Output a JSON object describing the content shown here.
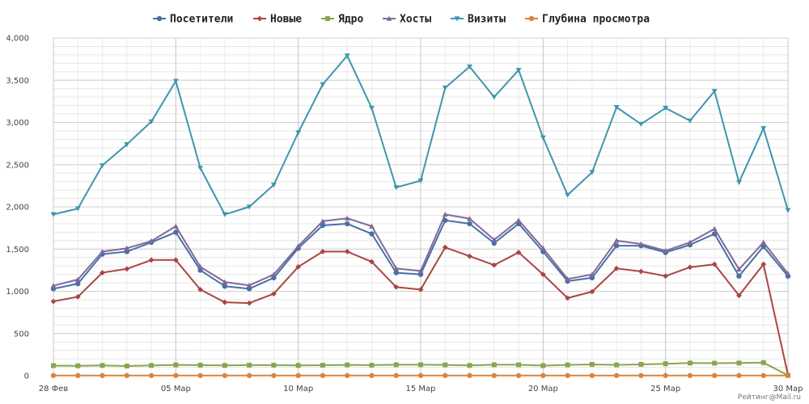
{
  "chart_data": {
    "type": "line",
    "title": "",
    "xlabel": "",
    "ylabel": "",
    "ylim": [
      0,
      4000
    ],
    "yticks": [
      0,
      500,
      1000,
      1500,
      2000,
      2500,
      3000,
      3500,
      4000
    ],
    "ytick_labels": [
      "0",
      "500",
      "1,000",
      "1,500",
      "2,000",
      "2,500",
      "3,000",
      "3,500",
      "4,000"
    ],
    "grid": true,
    "legend_position": "top-center",
    "x": [
      "28 Фев",
      "01 Мар",
      "02 Мар",
      "03 Мар",
      "04 Мар",
      "05 Мар",
      "06 Мар",
      "07 Мар",
      "08 Мар",
      "09 Мар",
      "10 Мар",
      "11 Мар",
      "12 Мар",
      "13 Мар",
      "14 Мар",
      "15 Мар",
      "16 Мар",
      "17 Мар",
      "18 Мар",
      "19 Мар",
      "20 Мар",
      "21 Мар",
      "22 Мар",
      "23 Мар",
      "24 Мар",
      "25 Мар",
      "26 Мар",
      "27 Мар",
      "28 Мар",
      "29 Мар",
      "30 Мар"
    ],
    "xtick_labels": [
      "28 Фев",
      "05 Мар",
      "10 Мар",
      "15 Мар",
      "20 Мар",
      "25 Мар",
      "30 Мар"
    ],
    "xtick_index": [
      0,
      5,
      10,
      15,
      20,
      25,
      30
    ],
    "series": [
      {
        "name": "Посетители",
        "color": "#4a6fa5",
        "marker": "circle",
        "values": [
          1030,
          1090,
          1440,
          1470,
          1580,
          1700,
          1250,
          1060,
          1030,
          1160,
          1510,
          1780,
          1800,
          1680,
          1220,
          1200,
          1840,
          1800,
          1570,
          1800,
          1470,
          1120,
          1160,
          1540,
          1540,
          1460,
          1550,
          1680,
          1180,
          1530,
          1180
        ]
      },
      {
        "name": "Новые",
        "color": "#aa4643",
        "marker": "diamond",
        "values": [
          880,
          935,
          1220,
          1265,
          1370,
          1370,
          1020,
          870,
          860,
          970,
          1290,
          1470,
          1470,
          1350,
          1050,
          1020,
          1520,
          1415,
          1310,
          1460,
          1200,
          920,
          995,
          1270,
          1235,
          1180,
          1285,
          1320,
          950,
          1320,
          10
        ]
      },
      {
        "name": "Ядро",
        "color": "#89a54e",
        "marker": "square",
        "values": [
          120,
          118,
          122,
          115,
          122,
          128,
          125,
          122,
          125,
          125,
          122,
          124,
          128,
          125,
          130,
          130,
          128,
          122,
          130,
          130,
          120,
          128,
          134,
          128,
          134,
          142,
          150,
          148,
          150,
          155,
          5
        ]
      },
      {
        "name": "Хосты",
        "color": "#80699b",
        "marker": "triangle-up",
        "values": [
          1065,
          1140,
          1470,
          1510,
          1595,
          1770,
          1290,
          1110,
          1070,
          1200,
          1535,
          1830,
          1865,
          1770,
          1270,
          1240,
          1910,
          1860,
          1610,
          1840,
          1510,
          1145,
          1200,
          1600,
          1560,
          1480,
          1580,
          1740,
          1260,
          1580,
          1210
        ]
      },
      {
        "name": "Визиты",
        "color": "#3d96ae",
        "marker": "triangle-down",
        "values": [
          1910,
          1980,
          2490,
          2740,
          3010,
          3490,
          2460,
          1910,
          2000,
          2260,
          2880,
          3450,
          3790,
          3170,
          2230,
          2310,
          3410,
          3660,
          3300,
          3620,
          2820,
          2140,
          2410,
          3180,
          2980,
          3170,
          3020,
          3370,
          2290,
          2930,
          1960
        ]
      },
      {
        "name": "Глубина просмотра",
        "color": "#db843d",
        "marker": "circle",
        "values": [
          2,
          2,
          2,
          2,
          2,
          2,
          2,
          2,
          2,
          2,
          2,
          2,
          2,
          2,
          2,
          2,
          2,
          2,
          2,
          2,
          2,
          2,
          2,
          2,
          2,
          2,
          2,
          2,
          2,
          2,
          2
        ]
      }
    ]
  },
  "credit": "Рейтинг@Mail.ru"
}
